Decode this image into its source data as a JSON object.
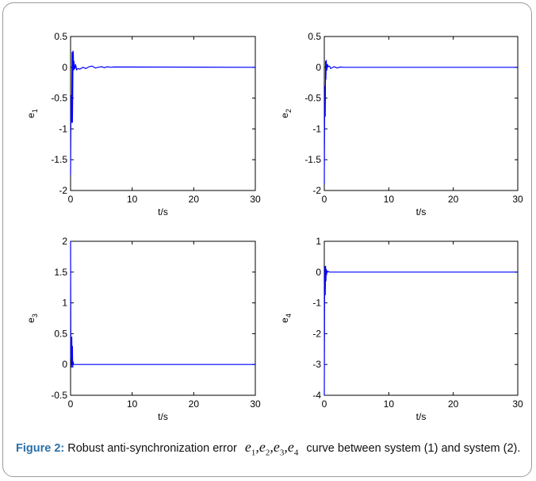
{
  "caption": {
    "label": "Figure 2:",
    "text_before": "Robust anti-synchronization error",
    "variables": [
      {
        "base": "e",
        "sub": "1",
        "sep": ","
      },
      {
        "base": "e",
        "sub": "2",
        "sep": ","
      },
      {
        "base": "e",
        "sub": "3",
        "sep": ","
      },
      {
        "base": "e",
        "sub": "4",
        "sep": ""
      }
    ],
    "text_after": "curve between system (1) and system (2)."
  },
  "colors": {
    "series": "#0000ff",
    "axes": "#000000"
  },
  "chart_data": [
    {
      "type": "line",
      "xlabel": "t/s",
      "ylabel": {
        "base": "e",
        "sub": "1"
      },
      "xlim": [
        0,
        30
      ],
      "ylim": [
        -2,
        0.5
      ],
      "xticks": [
        0,
        10,
        20,
        30
      ],
      "yticks": [
        0.5,
        0,
        -0.5,
        -1,
        -1.5,
        -2
      ],
      "series": [
        {
          "x": [
            0,
            0.05,
            0.1,
            0.15,
            0.2,
            0.25,
            0.3,
            0.35,
            0.4,
            0.45,
            0.5,
            0.55,
            0.6,
            0.7,
            0.8,
            1.0,
            1.2,
            1.5,
            2.0,
            2.5,
            3.0,
            3.5,
            4.0,
            4.5,
            5.0,
            5.5,
            6.0,
            6.5,
            7.0,
            30
          ],
          "y": [
            -1.75,
            -0.9,
            -0.45,
            -0.9,
            -0.5,
            0.25,
            -0.9,
            -0.45,
            0.27,
            0.2,
            -0.05,
            0.1,
            0.02,
            -0.03,
            0.05,
            -0.04,
            -0.02,
            -0.03,
            0.0,
            -0.02,
            0.01,
            0.02,
            -0.01,
            0.0,
            0.01,
            -0.005,
            0.01,
            0.0,
            0.005,
            0.0
          ]
        }
      ]
    },
    {
      "type": "line",
      "xlabel": "t/s",
      "ylabel": {
        "base": "e",
        "sub": "2"
      },
      "xlim": [
        0,
        30
      ],
      "ylim": [
        -2,
        0.5
      ],
      "xticks": [
        0,
        10,
        20,
        30
      ],
      "yticks": [
        0.5,
        0,
        -0.5,
        -1,
        -1.5,
        -2
      ],
      "series": [
        {
          "x": [
            0,
            0.05,
            0.1,
            0.15,
            0.2,
            0.25,
            0.3,
            0.35,
            0.4,
            0.5,
            0.6,
            0.8,
            1.0,
            1.5,
            2.0,
            2.5,
            3.0,
            4.0,
            30
          ],
          "y": [
            -1.9,
            -0.8,
            -0.3,
            -0.8,
            0.1,
            -0.2,
            0.12,
            0.02,
            -0.05,
            0.05,
            0.01,
            0.02,
            -0.02,
            0.01,
            -0.01,
            0.005,
            0.0,
            0.0,
            0.0
          ]
        }
      ]
    },
    {
      "type": "line",
      "xlabel": "t/s",
      "ylabel": {
        "base": "e",
        "sub": "3"
      },
      "xlim": [
        0,
        30
      ],
      "ylim": [
        -0.5,
        2
      ],
      "xticks": [
        0,
        10,
        20,
        30
      ],
      "yticks": [
        2,
        1.5,
        1,
        0.5,
        0,
        -0.5
      ],
      "series": [
        {
          "x": [
            0,
            0.05,
            0.1,
            0.15,
            0.2,
            0.25,
            0.3,
            0.35,
            0.4,
            0.5,
            0.6,
            0.8,
            30
          ],
          "y": [
            2.0,
            0.1,
            0.45,
            -0.05,
            0.45,
            0.0,
            0.3,
            -0.05,
            0.05,
            0.0,
            0.0,
            0.0,
            0.0
          ]
        }
      ]
    },
    {
      "type": "line",
      "xlabel": "t/s",
      "ylabel": {
        "base": "e",
        "sub": "4"
      },
      "xlim": [
        0,
        30
      ],
      "ylim": [
        -4,
        1
      ],
      "xticks": [
        0,
        10,
        20,
        30
      ],
      "yticks": [
        1,
        0,
        -1,
        -2,
        -3,
        -4
      ],
      "series": [
        {
          "x": [
            0,
            0.05,
            0.1,
            0.15,
            0.2,
            0.25,
            0.3,
            0.35,
            0.4,
            0.5,
            0.6,
            0.8,
            30
          ],
          "y": [
            -4.0,
            -0.7,
            0.2,
            -0.75,
            0.2,
            -0.3,
            0.1,
            -0.1,
            0.05,
            0.0,
            0.02,
            0.0,
            0.0
          ]
        }
      ]
    }
  ]
}
